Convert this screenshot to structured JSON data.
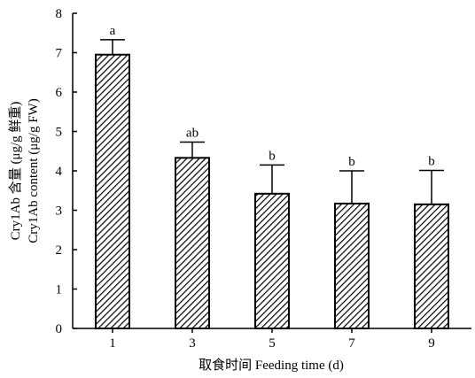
{
  "chart_data": {
    "type": "bar",
    "title": "",
    "xlabel": "取食时间 Feeding time (d)",
    "ylabel_lines": [
      "Cry1Ab 含量 (μg/g 鲜重)",
      "Cry1Ab content (μg/g FW)"
    ],
    "categories": [
      "1",
      "3",
      "5",
      "7",
      "9"
    ],
    "values": [
      6.95,
      4.33,
      3.42,
      3.17,
      3.15
    ],
    "errors": [
      0.38,
      0.4,
      0.73,
      0.83,
      0.86
    ],
    "significance": [
      "a",
      "ab",
      "b",
      "b",
      "b"
    ],
    "ylim": [
      0,
      8
    ],
    "yticks": [
      "0",
      "1",
      "2",
      "3",
      "4",
      "5",
      "6",
      "7",
      "8"
    ],
    "grid": false,
    "bar_pattern": "diagonal-hatch"
  }
}
